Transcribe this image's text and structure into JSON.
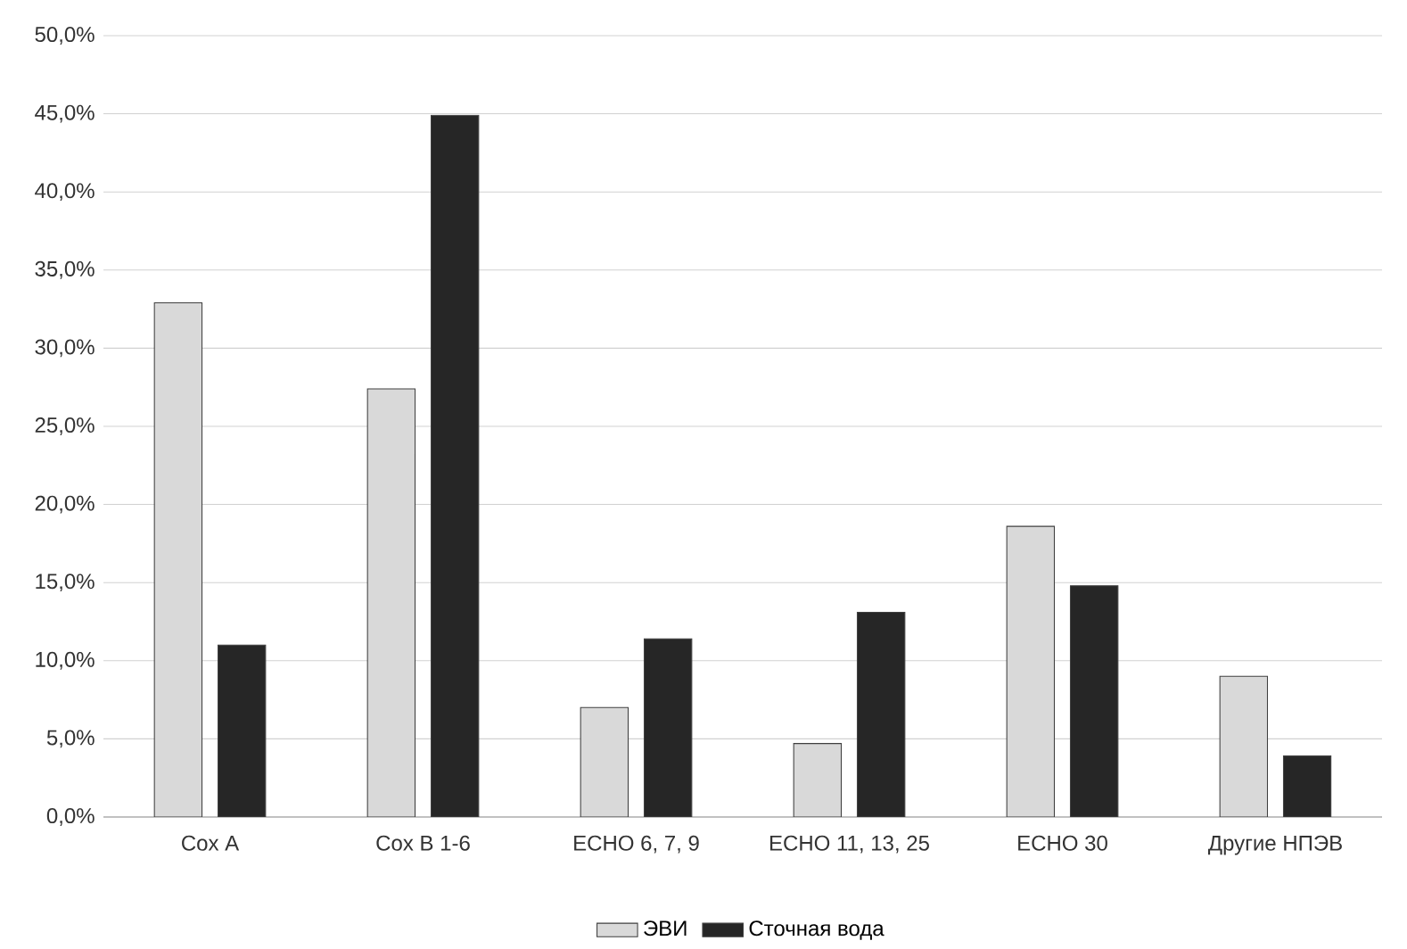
{
  "chart_data": {
    "type": "bar",
    "categories": [
      "Cox A",
      "Cox B 1-6",
      "ECHO 6, 7, 9",
      "ECHO 11, 13, 25",
      "ECHO 30",
      "Другие НПЭВ"
    ],
    "series": [
      {
        "name": "ЭВИ",
        "color": "#d9d9d9",
        "values": [
          32.9,
          27.4,
          7.0,
          4.7,
          18.6,
          9.0
        ]
      },
      {
        "name": "Сточная вода",
        "color": "#262626",
        "values": [
          11.0,
          44.9,
          11.4,
          13.1,
          14.8,
          3.9
        ]
      }
    ],
    "ylim": [
      0,
      50
    ],
    "yticks": [
      {
        "value": 0,
        "label": "0,0%"
      },
      {
        "value": 5,
        "label": "5,0%"
      },
      {
        "value": 10,
        "label": "10,0%"
      },
      {
        "value": 15,
        "label": "15,0%"
      },
      {
        "value": 20,
        "label": "20,0%"
      },
      {
        "value": 25,
        "label": "25,0%"
      },
      {
        "value": 30,
        "label": "30,0%"
      },
      {
        "value": 35,
        "label": "35,0%"
      },
      {
        "value": 40,
        "label": "40,0%"
      },
      {
        "value": 45,
        "label": "45,0%"
      },
      {
        "value": 50,
        "label": "50,0%"
      }
    ],
    "grid": "y",
    "legend": "bottom"
  }
}
